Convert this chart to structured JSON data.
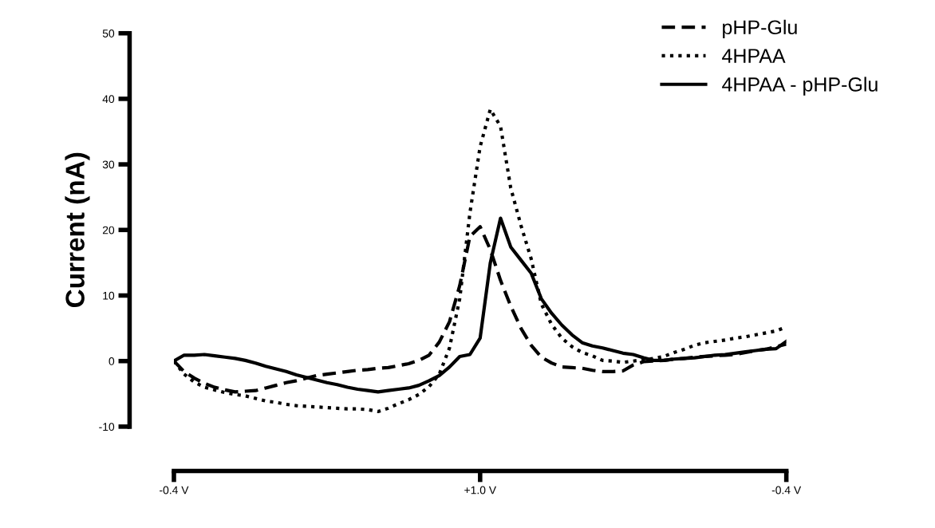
{
  "chart_data": {
    "type": "line",
    "ylabel": "Current (nA)",
    "ylim": [
      -10,
      50
    ],
    "yticks": [
      -10,
      0,
      10,
      20,
      30,
      40,
      50
    ],
    "grid": false,
    "legend": "top right",
    "marker": "none",
    "categories": [
      "-0.4 V",
      null,
      null,
      null,
      null,
      null,
      null,
      null,
      null,
      null,
      null,
      null,
      null,
      null,
      null,
      null,
      null,
      null,
      null,
      null,
      null,
      null,
      null,
      null,
      null,
      null,
      null,
      null,
      null,
      null,
      "+1.0 V",
      null,
      null,
      null,
      null,
      null,
      null,
      null,
      null,
      null,
      null,
      null,
      null,
      null,
      null,
      null,
      null,
      null,
      null,
      null,
      null,
      null,
      null,
      null,
      null,
      null,
      null,
      null,
      null,
      null,
      "-0.4 V"
    ],
    "series": [
      {
        "name": "pHP-Glu",
        "color": "#000000",
        "line_style": "dashed",
        "values": [
          0,
          -1.6,
          -2.6,
          -3.4,
          -4.0,
          -4.4,
          -4.7,
          -4.6,
          -4.5,
          -4.1,
          -3.7,
          -3.3,
          -3.0,
          -2.6,
          -2.2,
          -2.0,
          -1.8,
          -1.6,
          -1.4,
          -1.3,
          -1.1,
          -1.0,
          -0.7,
          -0.4,
          0.1,
          0.9,
          2.9,
          6.0,
          11.5,
          19.0,
          20.5,
          17.0,
          12.3,
          8.4,
          5.0,
          2.4,
          0.6,
          -0.3,
          -0.9,
          -1.0,
          -1.1,
          -1.4,
          -1.6,
          -1.6,
          -1.5,
          -0.6,
          -0.1,
          0.0,
          0.1,
          0.3,
          0.4,
          0.6,
          0.7,
          0.8,
          0.9,
          1.0,
          1.3,
          1.6,
          1.8,
          2.2,
          2.6
        ]
      },
      {
        "name": "4HPAA",
        "color": "#000000",
        "line_style": "dotted",
        "values": [
          0,
          -2.0,
          -3.2,
          -4.0,
          -4.4,
          -4.8,
          -5.1,
          -5.3,
          -5.7,
          -6.1,
          -6.3,
          -6.6,
          -6.8,
          -6.9,
          -7.0,
          -7.1,
          -7.2,
          -7.3,
          -7.3,
          -7.4,
          -7.7,
          -7.2,
          -6.5,
          -5.9,
          -5.1,
          -3.9,
          -2.0,
          2.0,
          9.5,
          22.6,
          32.7,
          38.4,
          35.8,
          26.4,
          20.7,
          15.6,
          8.7,
          5.6,
          3.5,
          2.2,
          1.3,
          0.8,
          0.1,
          0.0,
          -0.2,
          0.0,
          0.2,
          0.4,
          0.7,
          1.3,
          1.8,
          2.4,
          2.8,
          3.0,
          3.2,
          3.5,
          3.7,
          4.0,
          4.3,
          4.6,
          5.2
        ]
      },
      {
        "name": "4HPAA - pHP-Glu",
        "color": "#000000",
        "line_style": "solid",
        "values": [
          0,
          0.9,
          0.9,
          1.0,
          0.8,
          0.6,
          0.4,
          0.1,
          -0.3,
          -0.8,
          -1.2,
          -1.6,
          -2.1,
          -2.5,
          -2.9,
          -3.3,
          -3.6,
          -4.0,
          -4.3,
          -4.5,
          -4.7,
          -4.5,
          -4.3,
          -4.1,
          -3.7,
          -3.0,
          -2.2,
          -0.9,
          0.7,
          1.0,
          3.5,
          15.0,
          21.8,
          17.4,
          15.4,
          13.4,
          9.5,
          7.3,
          5.5,
          4.0,
          2.8,
          2.3,
          2.0,
          1.6,
          1.2,
          1.0,
          0.5,
          0.1,
          0.1,
          0.3,
          0.4,
          0.5,
          0.7,
          0.9,
          1.0,
          1.2,
          1.4,
          1.6,
          1.8,
          1.9,
          3.0
        ]
      }
    ]
  }
}
